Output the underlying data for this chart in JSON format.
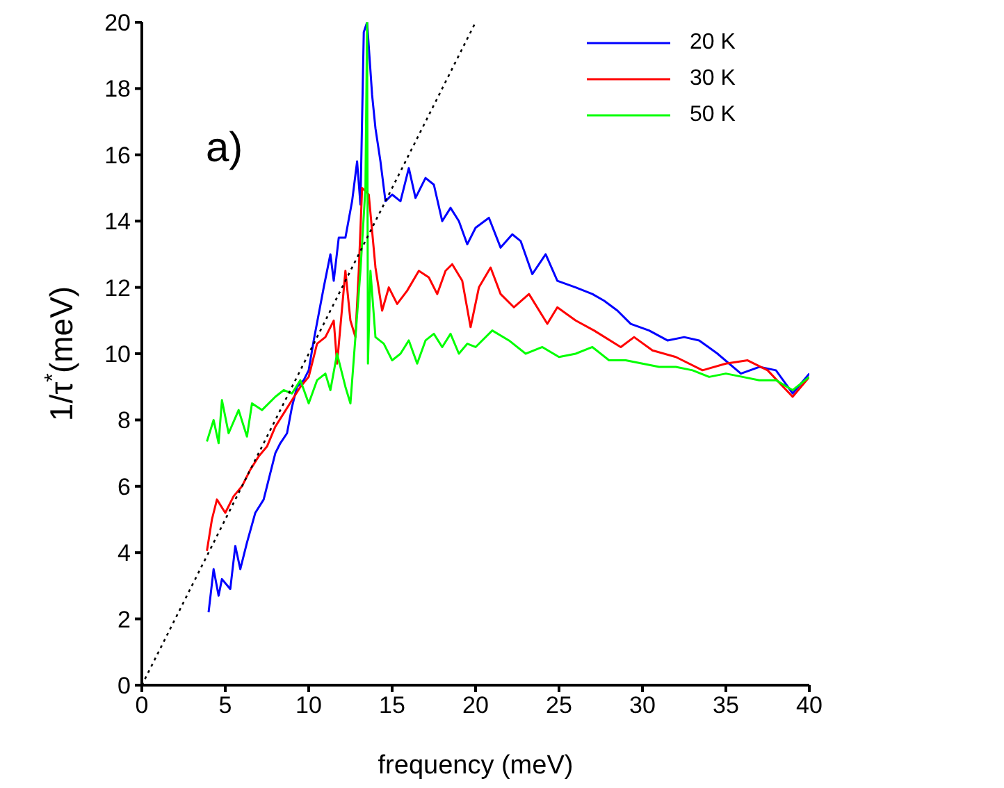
{
  "chart_data": {
    "type": "line",
    "xlabel": "frequency (meV)",
    "ylabel": "1/τ$^{*}$(meV)",
    "annotations": [
      "a)"
    ],
    "xlim": [
      0,
      40
    ],
    "ylim": [
      0,
      20
    ],
    "xticks": [
      0,
      5,
      10,
      15,
      20,
      25,
      30,
      35,
      40
    ],
    "yticks": [
      0,
      2,
      4,
      6,
      8,
      10,
      12,
      14,
      16,
      18,
      20
    ],
    "grid": false,
    "legend": "top right",
    "marker": "none",
    "line_style": "solid",
    "series": [
      {
        "name": "20 K",
        "color": "#0000ff",
        "x": [
          4.0,
          4.3,
          4.6,
          4.8,
          5.3,
          5.6,
          5.9,
          6.3,
          6.8,
          7.3,
          7.7,
          8.0,
          8.3,
          8.7,
          9.0,
          9.3,
          9.7,
          10.0,
          10.3,
          10.6,
          10.9,
          11.3,
          11.5,
          11.8,
          12.2,
          12.6,
          12.9,
          13.1,
          13.3,
          13.5,
          13.8,
          14.0,
          14.3,
          14.6,
          15.0,
          15.5,
          16.0,
          16.4,
          17.0,
          17.5,
          18.0,
          18.5,
          19.0,
          19.5,
          20.0,
          20.8,
          21.5,
          22.2,
          22.7,
          23.4,
          24.2,
          24.9,
          26.0,
          27.0,
          27.7,
          28.5,
          29.3,
          30.4,
          31.5,
          32.5,
          33.4,
          34.5,
          35.9,
          37.0,
          38.0,
          39.0,
          40.0
        ],
        "values": [
          2.2,
          3.5,
          2.7,
          3.2,
          2.9,
          4.2,
          3.5,
          4.3,
          5.2,
          5.6,
          6.4,
          7.0,
          7.3,
          7.6,
          8.4,
          9.0,
          9.2,
          9.5,
          10.4,
          11.2,
          12.0,
          13.0,
          12.2,
          13.5,
          13.5,
          14.6,
          15.8,
          14.5,
          19.7,
          20.0,
          17.8,
          16.8,
          15.8,
          14.6,
          14.8,
          14.6,
          15.6,
          14.7,
          15.3,
          15.1,
          14.0,
          14.4,
          14.0,
          13.3,
          13.8,
          14.1,
          13.2,
          13.6,
          13.4,
          12.4,
          13.0,
          12.2,
          12.0,
          11.8,
          11.6,
          11.3,
          10.9,
          10.7,
          10.4,
          10.5,
          10.4,
          10.0,
          9.4,
          9.6,
          9.5,
          8.8,
          9.4
        ]
      },
      {
        "name": "30 K",
        "color": "#ff0000",
        "x": [
          3.9,
          4.2,
          4.5,
          5.0,
          5.5,
          6.0,
          6.5,
          7.0,
          7.5,
          8.0,
          8.5,
          9.0,
          9.5,
          10.0,
          10.5,
          11.0,
          11.5,
          11.7,
          12.2,
          12.5,
          12.8,
          13.0,
          13.2,
          13.6,
          14.0,
          14.4,
          14.8,
          15.3,
          15.9,
          16.6,
          17.2,
          17.7,
          18.2,
          18.6,
          19.2,
          19.7,
          20.2,
          20.9,
          21.5,
          22.3,
          23.2,
          24.3,
          24.9,
          26.0,
          27.1,
          28.7,
          29.5,
          30.6,
          32.0,
          33.6,
          35.0,
          36.3,
          37.5,
          39.0,
          40.0
        ],
        "values": [
          4.05,
          5.0,
          5.6,
          5.2,
          5.7,
          6.0,
          6.5,
          6.9,
          7.2,
          7.8,
          8.2,
          8.6,
          9.0,
          9.3,
          10.3,
          10.5,
          11.0,
          9.7,
          12.5,
          11.0,
          10.5,
          12.5,
          15.0,
          14.8,
          12.6,
          11.3,
          12.0,
          11.5,
          11.9,
          12.5,
          12.3,
          11.8,
          12.5,
          12.7,
          12.2,
          10.8,
          12.0,
          12.6,
          11.8,
          11.4,
          11.8,
          10.9,
          11.4,
          11.0,
          10.7,
          10.2,
          10.5,
          10.1,
          9.9,
          9.5,
          9.7,
          9.8,
          9.5,
          8.7,
          9.3
        ]
      },
      {
        "name": "50 K",
        "color": "#00ff00",
        "x": [
          3.9,
          4.3,
          4.6,
          4.8,
          5.2,
          5.8,
          6.3,
          6.6,
          7.2,
          8.0,
          8.5,
          9.0,
          9.5,
          10.0,
          10.5,
          11.0,
          11.3,
          11.7,
          12.2,
          12.5,
          12.8,
          13.1,
          13.4,
          13.5,
          13.55,
          13.7,
          14.0,
          14.5,
          15.0,
          15.5,
          16.0,
          16.5,
          17.0,
          17.5,
          18.0,
          18.5,
          19.0,
          19.5,
          20.0,
          21.0,
          22.0,
          23.0,
          24.0,
          25.0,
          26.0,
          27.0,
          28.0,
          29.0,
          30.0,
          31.0,
          32.0,
          33.0,
          34.0,
          35.0,
          36.0,
          37.0,
          38.0,
          39.0,
          40.0
        ],
        "values": [
          7.35,
          8.0,
          7.3,
          8.6,
          7.6,
          8.3,
          7.5,
          8.5,
          8.3,
          8.7,
          8.9,
          8.8,
          9.2,
          8.5,
          9.2,
          9.4,
          8.9,
          10.0,
          9.0,
          8.5,
          10.5,
          12.5,
          15.0,
          20.0,
          9.7,
          12.5,
          10.5,
          10.3,
          9.8,
          10.0,
          10.4,
          9.7,
          10.4,
          10.6,
          10.2,
          10.6,
          10.0,
          10.3,
          10.2,
          10.7,
          10.4,
          10.0,
          10.2,
          9.9,
          10.0,
          10.2,
          9.8,
          9.8,
          9.7,
          9.6,
          9.6,
          9.5,
          9.3,
          9.4,
          9.3,
          9.2,
          9.2,
          8.9,
          9.3
        ]
      },
      {
        "type": "line",
        "color": "#000000",
        "line_style": "dotted",
        "x": [
          0,
          20
        ],
        "values": [
          0,
          20
        ]
      }
    ]
  }
}
